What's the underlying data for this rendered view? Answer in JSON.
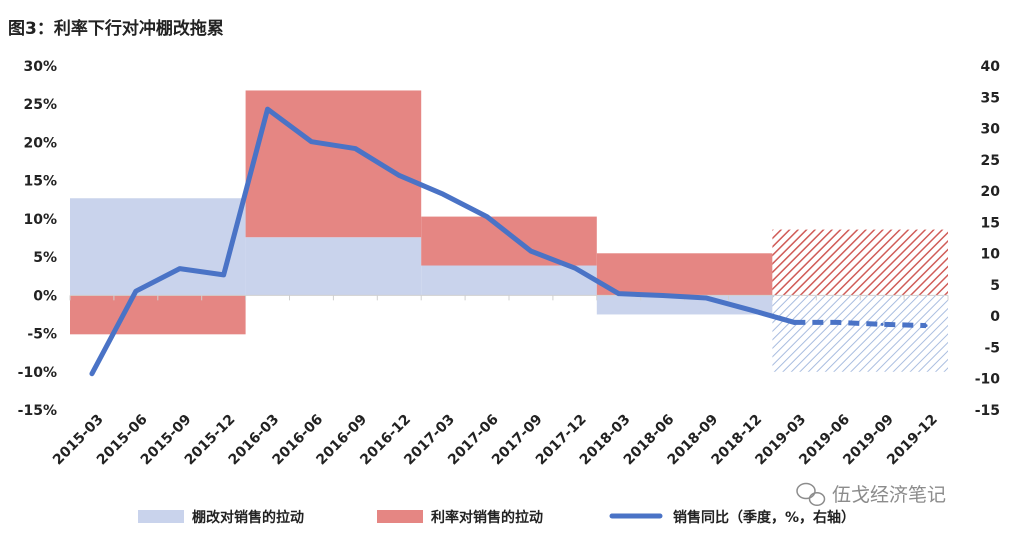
{
  "title": "图3：利率下行对冲棚改拖累",
  "watermark": "伍戈经济笔记",
  "colors": {
    "shantytown": "#c9d3ec",
    "rate": "#e58683",
    "sales": "#4a73c6",
    "axis": "#d0d0d0"
  },
  "chart_data": {
    "type": "bar",
    "categories": [
      "2015-03",
      "2015-06",
      "2015-09",
      "2015-12",
      "2016-03",
      "2016-06",
      "2016-09",
      "2016-12",
      "2017-03",
      "2017-06",
      "2017-09",
      "2017-12",
      "2018-03",
      "2018-06",
      "2018-09",
      "2018-12",
      "2019-03",
      "2019-06",
      "2019-09",
      "2019-12"
    ],
    "left_axis": {
      "ylim": [
        -15,
        30
      ],
      "ticks": [
        "-15%",
        "-10%",
        "-5%",
        "0%",
        "5%",
        "10%",
        "15%",
        "20%",
        "25%",
        "30%"
      ],
      "tick_values": [
        -15,
        -10,
        -5,
        0,
        5,
        10,
        15,
        20,
        25,
        30
      ]
    },
    "right_axis": {
      "ylim": [
        -15,
        40
      ],
      "ticks": [
        "-15",
        "-10",
        "-5",
        "0",
        "5",
        "10",
        "15",
        "20",
        "25",
        "30",
        "35",
        "40"
      ],
      "tick_values": [
        -15,
        -10,
        -5,
        0,
        5,
        10,
        15,
        20,
        25,
        30,
        35,
        40
      ]
    },
    "annual_bars": [
      {
        "year": "2015",
        "start": "2015-03",
        "end": "2015-12",
        "shantytown": 12.7,
        "rate": -5.1,
        "estimated": false
      },
      {
        "year": "2016",
        "start": "2016-03",
        "end": "2016-12",
        "shantytown": 7.6,
        "rate": 19.2,
        "estimated": false
      },
      {
        "year": "2017",
        "start": "2017-03",
        "end": "2017-12",
        "shantytown": 3.9,
        "rate": 6.4,
        "estimated": false
      },
      {
        "year": "2018",
        "start": "2018-03",
        "end": "2018-12",
        "shantytown": -2.5,
        "rate": 5.5,
        "estimated": false
      },
      {
        "year": "2019",
        "start": "2019-03",
        "end": "2019-12",
        "shantytown": -10.0,
        "rate": 8.6,
        "estimated": true
      }
    ],
    "series": [
      {
        "name": "棚改对销售的拉动",
        "axis": "left",
        "kind": "bar"
      },
      {
        "name": "利率对销售的拉动",
        "axis": "left",
        "kind": "bar"
      },
      {
        "name": "销售同比（季度，%，右轴）",
        "axis": "right",
        "kind": "line",
        "x": [
          "2015-03",
          "2015-06",
          "2015-09",
          "2015-12",
          "2016-03",
          "2016-06",
          "2016-09",
          "2016-12",
          "2017-03",
          "2017-06",
          "2017-09",
          "2017-12",
          "2018-03",
          "2018-06",
          "2018-09",
          "2018-12",
          "2019-03",
          "2019-06",
          "2019-09",
          "2019-12"
        ],
        "values": [
          -9.2,
          4.0,
          7.6,
          6.6,
          33.1,
          27.9,
          26.8,
          22.5,
          19.5,
          15.9,
          10.4,
          7.7,
          3.6,
          3.3,
          2.9,
          1.0,
          -1.0,
          -1.0,
          -1.3,
          -1.5
        ],
        "dashed_from": "2019-03"
      }
    ],
    "legend_position": "bottom",
    "grid": false
  }
}
